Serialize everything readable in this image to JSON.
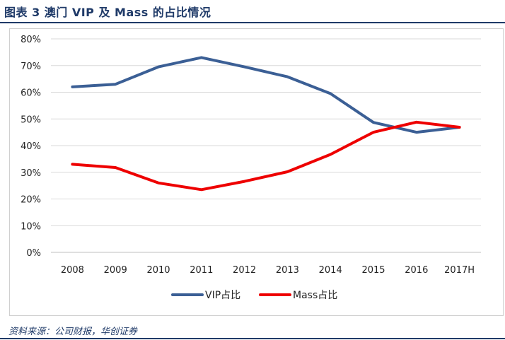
{
  "figure": {
    "title": "图表 3 澳门 VIP 及 Mass 的占比情况",
    "source": "资料来源：公司财报，华创证券"
  },
  "chart_data": {
    "type": "line",
    "categories": [
      "2008",
      "2009",
      "2010",
      "2011",
      "2012",
      "2013",
      "2014",
      "2015",
      "2016",
      "2017H"
    ],
    "y_ticks": [
      "0%",
      "10%",
      "20%",
      "30%",
      "40%",
      "50%",
      "60%",
      "70%",
      "80%"
    ],
    "ylim": [
      0,
      80
    ],
    "y_unit": "%",
    "grid": true,
    "legend_position": "bottom",
    "series": [
      {
        "name": "VIP占比",
        "color": "#3b5f95",
        "values": [
          62,
          63,
          69.5,
          73,
          69.5,
          65.8,
          59.5,
          48.7,
          45,
          46.9
        ]
      },
      {
        "name": "Mass占比",
        "color": "#ee0000",
        "values": [
          33,
          31.8,
          26,
          23.5,
          26.6,
          30.2,
          36.7,
          45,
          48.8,
          46.9
        ]
      }
    ]
  }
}
